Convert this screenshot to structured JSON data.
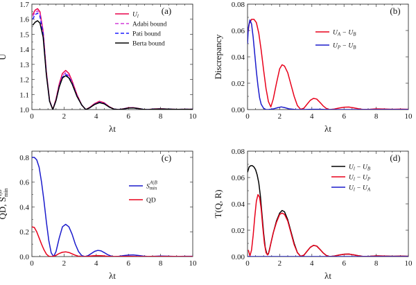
{
  "chart_data": [
    {
      "id": "a",
      "type": "line",
      "tag": "(a)",
      "xlabel": "λt",
      "ylabel": "U",
      "xlim": [
        0,
        10
      ],
      "ylim": [
        1.0,
        1.7
      ],
      "xticks": [
        0,
        2,
        4,
        6,
        8,
        10
      ],
      "yticks": [
        1.0,
        1.1,
        1.2,
        1.3,
        1.4,
        1.5,
        1.6,
        1.7
      ],
      "ytick_labels": [
        "1.0",
        "1.1",
        "1.2",
        "1.3",
        "1.4",
        "1.5",
        "1.6",
        "1.7"
      ],
      "legend_position": "top-right",
      "series": [
        {
          "name": "U_l",
          "legend_main": "U",
          "legend_sub": "l",
          "color": "#e8004a",
          "dash": "solid",
          "x": [
            0.05,
            0.2,
            0.35,
            0.5,
            0.7,
            0.9,
            1.1,
            1.3,
            1.5,
            1.7,
            1.9,
            2.1,
            2.3,
            2.5,
            2.8,
            3.1,
            3.35,
            3.6,
            3.9,
            4.2,
            4.5,
            4.8,
            5.1,
            5.4,
            5.7,
            6.0,
            6.3,
            6.6,
            6.9,
            7.2,
            7.6,
            8.0,
            8.5,
            9.0,
            9.5,
            10.0
          ],
          "y": [
            1.63,
            1.66,
            1.67,
            1.65,
            1.52,
            1.25,
            1.06,
            1.0,
            1.07,
            1.17,
            1.24,
            1.26,
            1.24,
            1.19,
            1.1,
            1.03,
            1.0,
            1.015,
            1.04,
            1.055,
            1.045,
            1.02,
            1.003,
            1.0,
            1.005,
            1.012,
            1.013,
            1.008,
            1.002,
            1.0,
            1.004,
            1.005,
            1.003,
            1.001,
            1.002,
            1.002
          ]
        },
        {
          "name": "Adabi bound",
          "legend_main": "Adabi bound",
          "legend_sub": "",
          "color": "#d23ad8",
          "dash": "dashed",
          "x": [
            0.05,
            0.2,
            0.35,
            0.5,
            0.7,
            0.9,
            1.1,
            1.3,
            1.5,
            1.7,
            1.9,
            2.1,
            2.3,
            2.5,
            2.8,
            3.1,
            3.35,
            3.6,
            3.9,
            4.2,
            4.5,
            4.8,
            5.1,
            5.4,
            5.7,
            6.0,
            6.3,
            6.6,
            6.9,
            7.2,
            7.6,
            8.0,
            8.5,
            9.0,
            9.5,
            10.0
          ],
          "y": [
            1.62,
            1.645,
            1.655,
            1.635,
            1.51,
            1.24,
            1.06,
            1.0,
            1.065,
            1.16,
            1.225,
            1.245,
            1.225,
            1.18,
            1.095,
            1.03,
            1.0,
            1.013,
            1.037,
            1.05,
            1.042,
            1.018,
            1.003,
            1.0,
            1.005,
            1.011,
            1.012,
            1.007,
            1.002,
            1.0,
            1.004,
            1.005,
            1.003,
            1.001,
            1.002,
            1.002
          ]
        },
        {
          "name": "Pati bound",
          "legend_main": "Pati bound",
          "legend_sub": "",
          "color": "#1a1aff",
          "dash": "dashed",
          "x": [
            0.05,
            0.2,
            0.35,
            0.5,
            0.7,
            0.9,
            1.1,
            1.3,
            1.5,
            1.7,
            1.9,
            2.1,
            2.3,
            2.5,
            2.8,
            3.1,
            3.35,
            3.6,
            3.9,
            4.2,
            4.5,
            4.8,
            5.1,
            5.4,
            5.7,
            6.0,
            6.3,
            6.6,
            6.9,
            7.2,
            7.6,
            8.0,
            8.5,
            9.0,
            9.5,
            10.0
          ],
          "y": [
            1.6,
            1.63,
            1.64,
            1.62,
            1.5,
            1.235,
            1.055,
            1.0,
            1.06,
            1.155,
            1.215,
            1.235,
            1.215,
            1.175,
            1.09,
            1.03,
            1.0,
            1.012,
            1.035,
            1.048,
            1.04,
            1.017,
            1.003,
            1.0,
            1.004,
            1.01,
            1.011,
            1.007,
            1.002,
            1.0,
            1.003,
            1.004,
            1.003,
            1.001,
            1.002,
            1.002
          ]
        },
        {
          "name": "Berta bound",
          "legend_main": "Berta bound",
          "legend_sub": "",
          "color": "#000000",
          "dash": "solid",
          "x": [
            0.05,
            0.2,
            0.35,
            0.5,
            0.7,
            0.9,
            1.1,
            1.3,
            1.5,
            1.7,
            1.9,
            2.1,
            2.3,
            2.5,
            2.8,
            3.1,
            3.35,
            3.6,
            3.9,
            4.2,
            4.5,
            4.8,
            5.1,
            5.4,
            5.7,
            6.0,
            6.3,
            6.6,
            6.9,
            7.2,
            7.6,
            8.0,
            8.5,
            9.0,
            9.5,
            10.0
          ],
          "y": [
            1.56,
            1.58,
            1.59,
            1.575,
            1.48,
            1.23,
            1.055,
            1.0,
            1.06,
            1.15,
            1.21,
            1.225,
            1.21,
            1.17,
            1.088,
            1.03,
            1.0,
            1.012,
            1.034,
            1.046,
            1.038,
            1.017,
            1.003,
            1.0,
            1.004,
            1.01,
            1.011,
            1.007,
            1.002,
            1.0,
            1.003,
            1.004,
            1.003,
            1.001,
            1.002,
            1.002
          ]
        }
      ]
    },
    {
      "id": "b",
      "type": "line",
      "tag": "(b)",
      "xlabel": "λt",
      "ylabel": "Discrepancy",
      "xlim": [
        0,
        10
      ],
      "ylim": [
        0,
        0.08
      ],
      "xticks": [
        0,
        2,
        4,
        6,
        8,
        10
      ],
      "yticks": [
        0,
        0.02,
        0.04,
        0.06,
        0.08
      ],
      "ytick_labels": [
        "0.00",
        "0.02",
        "0.04",
        "0.06",
        "0.08"
      ],
      "legend_position": "top-right",
      "series": [
        {
          "name": "U_A - U_B",
          "legend_main": "U",
          "legend_sub": "A",
          "legend_rest": " − U",
          "legend_sub2": "B",
          "color": "#e8001a",
          "dash": "solid",
          "x": [
            0.0,
            0.1,
            0.25,
            0.4,
            0.55,
            0.7,
            0.85,
            1.0,
            1.15,
            1.3,
            1.45,
            1.6,
            1.8,
            2.0,
            2.15,
            2.3,
            2.5,
            2.7,
            2.9,
            3.1,
            3.3,
            3.5,
            3.7,
            3.9,
            4.1,
            4.3,
            4.5,
            4.7,
            4.9,
            5.1,
            5.4,
            5.7,
            6.0,
            6.3,
            6.6,
            6.9,
            7.2,
            7.6,
            8.0,
            8.5,
            9.0,
            9.5,
            10.0
          ],
          "y": [
            0.056,
            0.065,
            0.0685,
            0.0685,
            0.066,
            0.058,
            0.045,
            0.03,
            0.016,
            0.006,
            0.002,
            0.008,
            0.02,
            0.031,
            0.034,
            0.033,
            0.028,
            0.019,
            0.01,
            0.003,
            0.0002,
            0.001,
            0.004,
            0.007,
            0.0085,
            0.008,
            0.0055,
            0.0028,
            0.0008,
            0.0,
            0.0004,
            0.0012,
            0.0018,
            0.0019,
            0.0013,
            0.0006,
            0.0001,
            0.0002,
            0.0005,
            0.0004,
            0.0002,
            0.0003,
            0.0002
          ]
        },
        {
          "name": "U_P - U_B",
          "legend_main": "U",
          "legend_sub": "P",
          "legend_rest": " − U",
          "legend_sub2": "B",
          "color": "#1a1acc",
          "dash": "solid",
          "x": [
            0.0,
            0.05,
            0.15,
            0.25,
            0.35,
            0.45,
            0.55,
            0.65,
            0.75,
            0.85,
            1.0,
            1.15,
            1.3,
            1.6,
            1.9,
            2.1,
            2.3,
            2.6,
            3.0,
            3.5,
            4.0,
            4.5,
            5.0,
            6.0,
            7.0,
            8.0,
            9.0,
            10.0
          ],
          "y": [
            0.05,
            0.062,
            0.068,
            0.065,
            0.055,
            0.042,
            0.029,
            0.018,
            0.009,
            0.004,
            0.001,
            0.0,
            0.0,
            0.0005,
            0.0015,
            0.002,
            0.0015,
            0.0005,
            0.0,
            0.0,
            0.0002,
            0.0002,
            0.0,
            0.0,
            0.0,
            0.0,
            0.0,
            0.0
          ]
        }
      ]
    },
    {
      "id": "c",
      "type": "line",
      "tag": "(c)",
      "xlabel": "λt",
      "ylabel": "QD, S",
      "ylabel_sup": "A|B",
      "ylabel_sub": "min",
      "xlim": [
        0,
        10
      ],
      "ylim": [
        0,
        0.85
      ],
      "xticks": [
        0,
        2,
        4,
        6,
        8,
        10
      ],
      "yticks": [
        0,
        0.2,
        0.4,
        0.6,
        0.8
      ],
      "ytick_labels": [
        "0.0",
        "0.2",
        "0.4",
        "0.6",
        "0.8"
      ],
      "legend_position": "right",
      "series": [
        {
          "name": "S_min^A|B",
          "legend_main": "S",
          "legend_sub": "min",
          "legend_sup": "A|B",
          "color": "#1a1acc",
          "dash": "solid",
          "x": [
            0.0,
            0.15,
            0.3,
            0.45,
            0.6,
            0.75,
            0.9,
            1.05,
            1.2,
            1.35,
            1.5,
            1.7,
            1.9,
            2.1,
            2.3,
            2.5,
            2.7,
            2.9,
            3.1,
            3.3,
            3.5,
            3.7,
            3.9,
            4.1,
            4.3,
            4.5,
            4.7,
            4.9,
            5.1,
            5.4,
            5.7,
            6.0,
            6.3,
            6.6,
            6.9,
            7.2,
            7.6,
            8.0,
            8.5,
            9.0,
            9.5,
            10.0
          ],
          "y": [
            0.8,
            0.8,
            0.78,
            0.72,
            0.6,
            0.45,
            0.28,
            0.13,
            0.03,
            0.0,
            0.04,
            0.15,
            0.24,
            0.26,
            0.24,
            0.18,
            0.1,
            0.04,
            0.008,
            0.0,
            0.008,
            0.025,
            0.042,
            0.05,
            0.046,
            0.032,
            0.016,
            0.005,
            0.0,
            0.002,
            0.008,
            0.012,
            0.013,
            0.009,
            0.004,
            0.001,
            0.002,
            0.004,
            0.003,
            0.001,
            0.002,
            0.002
          ]
        },
        {
          "name": "QD",
          "legend_main": "QD",
          "legend_sub": "",
          "color": "#e8001a",
          "dash": "solid",
          "x": [
            0.0,
            0.15,
            0.3,
            0.45,
            0.6,
            0.75,
            0.9,
            1.05,
            1.2,
            1.35,
            1.5,
            1.7,
            1.9,
            2.1,
            2.3,
            2.5,
            2.7,
            2.9,
            3.1,
            3.3,
            3.5,
            3.8,
            4.1,
            4.4,
            4.7,
            5.0,
            5.5,
            6.0,
            6.5,
            7.0,
            7.5,
            8.0,
            8.5,
            9.0,
            9.5,
            10.0
          ],
          "y": [
            0.24,
            0.235,
            0.2,
            0.15,
            0.1,
            0.055,
            0.02,
            0.003,
            0.0,
            0.003,
            0.01,
            0.025,
            0.035,
            0.038,
            0.033,
            0.022,
            0.011,
            0.003,
            0.0,
            0.0,
            0.002,
            0.006,
            0.008,
            0.006,
            0.002,
            0.0,
            0.001,
            0.002,
            0.001,
            0.0,
            0.0005,
            0.001,
            0.0005,
            0.0,
            0.0003,
            0.0003
          ]
        }
      ]
    },
    {
      "id": "d",
      "type": "line",
      "tag": "(d)",
      "xlabel": "λt",
      "ylabel": "T(Q, R)",
      "xlim": [
        0,
        10
      ],
      "ylim": [
        0,
        0.08
      ],
      "xticks": [
        0,
        2,
        4,
        6,
        8,
        10
      ],
      "yticks": [
        0,
        0.02,
        0.04,
        0.06,
        0.08
      ],
      "ytick_labels": [
        "0.00",
        "0.02",
        "0.04",
        "0.06",
        "0.08"
      ],
      "legend_position": "top-right",
      "series": [
        {
          "name": "U_l - U_B",
          "legend_main": "U",
          "legend_sub": "l",
          "legend_rest": " − U",
          "legend_sub2": "B",
          "color": "#000000",
          "dash": "solid",
          "x": [
            0.0,
            0.1,
            0.2,
            0.3,
            0.4,
            0.5,
            0.6,
            0.7,
            0.8,
            0.9,
            1.0,
            1.1,
            1.2,
            1.3,
            1.45,
            1.6,
            1.8,
            2.0,
            2.15,
            2.3,
            2.5,
            2.7,
            2.9,
            3.1,
            3.3,
            3.5,
            3.7,
            3.9,
            4.1,
            4.3,
            4.5,
            4.7,
            4.9,
            5.1,
            5.4,
            5.7,
            6.0,
            6.3,
            6.6,
            6.9,
            7.2,
            7.6,
            8.0,
            8.5,
            9.0,
            9.5,
            10.0
          ],
          "y": [
            0.064,
            0.068,
            0.069,
            0.069,
            0.068,
            0.066,
            0.062,
            0.056,
            0.046,
            0.032,
            0.018,
            0.007,
            0.002,
            0.002,
            0.01,
            0.018,
            0.027,
            0.033,
            0.035,
            0.034,
            0.028,
            0.019,
            0.01,
            0.003,
            0.0002,
            0.001,
            0.004,
            0.007,
            0.0085,
            0.008,
            0.0055,
            0.0028,
            0.0008,
            0.0,
            0.0004,
            0.0012,
            0.0018,
            0.0019,
            0.0013,
            0.0006,
            0.0001,
            0.0002,
            0.0005,
            0.0004,
            0.0002,
            0.0003,
            0.0002
          ]
        },
        {
          "name": "U_l - U_P",
          "legend_main": "U",
          "legend_sub": "l",
          "legend_rest": " − U",
          "legend_sub2": "P",
          "color": "#e8001a",
          "dash": "solid",
          "x": [
            0.05,
            0.15,
            0.25,
            0.35,
            0.45,
            0.55,
            0.65,
            0.75,
            0.85,
            0.95,
            1.05,
            1.15,
            1.25,
            1.35,
            1.45,
            1.6,
            1.8,
            2.0,
            2.15,
            2.3,
            2.5,
            2.7,
            2.9,
            3.1,
            3.3,
            3.5,
            3.7,
            3.9,
            4.1,
            4.3,
            4.5,
            4.7,
            4.9,
            5.1,
            5.4,
            5.7,
            6.0,
            6.3,
            6.6,
            6.9,
            7.2,
            7.6,
            8.0,
            8.5,
            9.0,
            9.5,
            10.0
          ],
          "y": [
            0.005,
            0.0005,
            0.005,
            0.016,
            0.03,
            0.042,
            0.047,
            0.045,
            0.036,
            0.022,
            0.01,
            0.003,
            0.0012,
            0.004,
            0.01,
            0.018,
            0.026,
            0.032,
            0.033,
            0.032,
            0.027,
            0.018,
            0.009,
            0.003,
            0.0002,
            0.001,
            0.004,
            0.007,
            0.0085,
            0.008,
            0.0055,
            0.0028,
            0.0008,
            0.0,
            0.0004,
            0.0012,
            0.0018,
            0.0019,
            0.0013,
            0.0006,
            0.0001,
            0.0002,
            0.0005,
            0.0004,
            0.0002,
            0.0003,
            0.0002
          ]
        },
        {
          "name": "U_l - U_A",
          "legend_main": "U",
          "legend_sub": "l",
          "legend_rest": " − U",
          "legend_sub2": "A",
          "color": "#1a1acc",
          "dash": "solid",
          "x": [
            0.0,
            0.5,
            1.0,
            1.5,
            2.0,
            2.5,
            3.0,
            4.0,
            5.0,
            6.0,
            7.0,
            8.0,
            9.0,
            10.0
          ],
          "y": [
            0.0,
            0.0,
            0.0,
            0.0,
            0.0,
            0.0,
            0.0,
            0.0,
            0.0,
            0.0,
            0.0,
            0.0,
            0.0,
            0.0
          ]
        }
      ]
    }
  ]
}
